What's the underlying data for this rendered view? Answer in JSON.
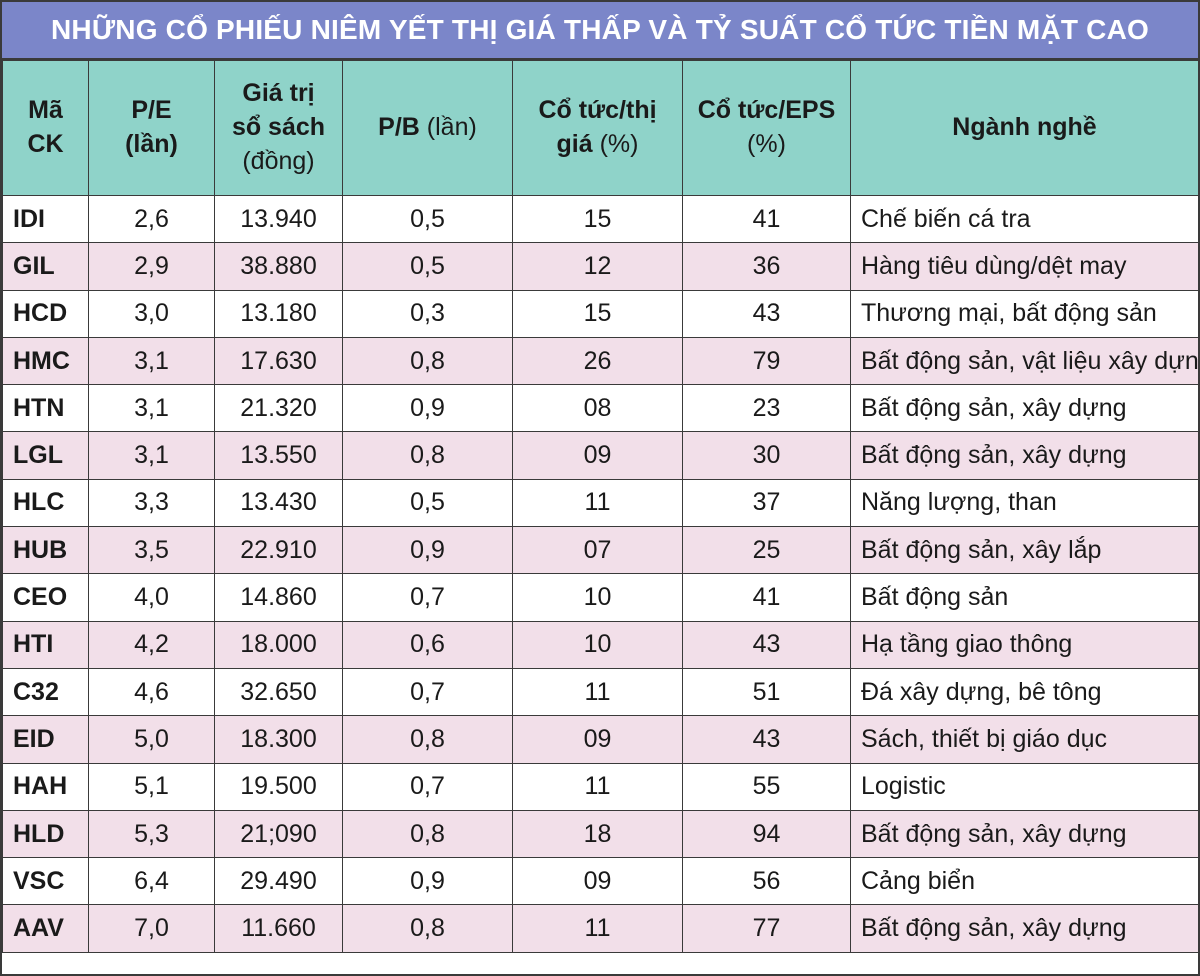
{
  "title": "NHỮNG CỔ PHIẾU NIÊM YẾT THỊ GIÁ THẤP VÀ TỶ SUẤT CỔ TỨC TIỀN MẶT CAO",
  "headers": {
    "code": {
      "l1": "Mã",
      "l2": "CK"
    },
    "pe": {
      "l1": "P/E",
      "l2": "(lần)"
    },
    "book": {
      "l1": "Giá trị",
      "l2": "sổ sách",
      "l3": "(đồng)"
    },
    "pb": {
      "bold": "P/B",
      "rest": " (lần)"
    },
    "div_price": {
      "l1": "Cổ tức/thị",
      "l2_bold": "giá",
      "l2_rest": " (%)"
    },
    "div_eps": {
      "l1": "Cổ tức/EPS",
      "l2": "(%)"
    },
    "industry": {
      "l1": "Ngành nghề"
    }
  },
  "colors": {
    "title_bg": "#7b86c9",
    "header_bg": "#8fd3c9",
    "alt_row_bg": "#f2dfe9"
  },
  "rows": [
    {
      "code": "IDI",
      "pe": "2,6",
      "book": "13.940",
      "pb": "0,5",
      "div_price": "15",
      "div_eps": "41",
      "industry": "Chế biến cá tra"
    },
    {
      "code": "GIL",
      "pe": "2,9",
      "book": "38.880",
      "pb": "0,5",
      "div_price": "12",
      "div_eps": "36",
      "industry": "Hàng tiêu dùng/dệt may"
    },
    {
      "code": "HCD",
      "pe": "3,0",
      "book": "13.180",
      "pb": "0,3",
      "div_price": "15",
      "div_eps": "43",
      "industry": "Thương mại, bất động sản"
    },
    {
      "code": "HMC",
      "pe": "3,1",
      "book": "17.630",
      "pb": "0,8",
      "div_price": "26",
      "div_eps": "79",
      "industry": "Bất động sản, vật liệu xây dựng"
    },
    {
      "code": "HTN",
      "pe": "3,1",
      "book": "21.320",
      "pb": "0,9",
      "div_price": "08",
      "div_eps": "23",
      "industry": "Bất động sản, xây dựng"
    },
    {
      "code": "LGL",
      "pe": "3,1",
      "book": "13.550",
      "pb": "0,8",
      "div_price": "09",
      "div_eps": "30",
      "industry": "Bất động sản, xây dựng"
    },
    {
      "code": "HLC",
      "pe": "3,3",
      "book": "13.430",
      "pb": "0,5",
      "div_price": "11",
      "div_eps": "37",
      "industry": "Năng lượng, than"
    },
    {
      "code": "HUB",
      "pe": "3,5",
      "book": "22.910",
      "pb": "0,9",
      "div_price": "07",
      "div_eps": "25",
      "industry": "Bất động sản, xây lắp"
    },
    {
      "code": "CEO",
      "pe": "4,0",
      "book": "14.860",
      "pb": "0,7",
      "div_price": "10",
      "div_eps": "41",
      "industry": "Bất động sản"
    },
    {
      "code": "HTI",
      "pe": "4,2",
      "book": "18.000",
      "pb": "0,6",
      "div_price": "10",
      "div_eps": "43",
      "industry": "Hạ tầng giao thông"
    },
    {
      "code": "C32",
      "pe": "4,6",
      "book": "32.650",
      "pb": "0,7",
      "div_price": "11",
      "div_eps": "51",
      "industry": "Đá xây dựng, bê tông"
    },
    {
      "code": "EID",
      "pe": "5,0",
      "book": "18.300",
      "pb": "0,8",
      "div_price": "09",
      "div_eps": "43",
      "industry": "Sách, thiết bị giáo dục"
    },
    {
      "code": "HAH",
      "pe": "5,1",
      "book": "19.500",
      "pb": "0,7",
      "div_price": "11",
      "div_eps": "55",
      "industry": "Logistic"
    },
    {
      "code": "HLD",
      "pe": "5,3",
      "book": "21;090",
      "pb": "0,8",
      "div_price": "18",
      "div_eps": "94",
      "industry": "Bất động sản, xây dựng"
    },
    {
      "code": "VSC",
      "pe": "6,4",
      "book": "29.490",
      "pb": "0,9",
      "div_price": "09",
      "div_eps": "56",
      "industry": "Cảng biển"
    },
    {
      "code": "AAV",
      "pe": "7,0",
      "book": "11.660",
      "pb": "0,8",
      "div_price": "11",
      "div_eps": "77",
      "industry": "Bất động sản, xây dựng"
    }
  ]
}
